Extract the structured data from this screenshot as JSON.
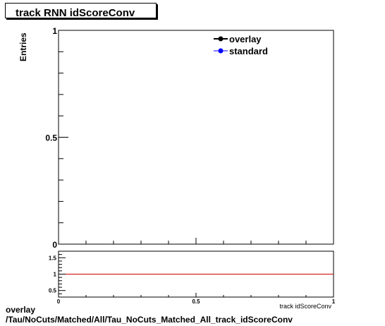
{
  "chart_data": [
    {
      "type": "line",
      "title": "track RNN idScoreConv",
      "ylabel": "Entries",
      "xlabel": "",
      "xlim": [
        0,
        1
      ],
      "ylim": [
        0,
        1
      ],
      "x_ticks": [
        0,
        0.5,
        1
      ],
      "y_ticks": [
        "0",
        "0.5",
        "1"
      ],
      "series": [
        {
          "name": "overlay",
          "color": "#000000",
          "x": [],
          "y": []
        },
        {
          "name": "standard",
          "color": "#0000ff",
          "x": [],
          "y": []
        }
      ],
      "legend": "top-right",
      "grid": false
    },
    {
      "type": "line",
      "title": "",
      "xlabel": "track idScoreConv",
      "xlim": [
        0,
        1
      ],
      "ylim": [
        0.3,
        1.7
      ],
      "x_ticks": [
        "0",
        "0.5",
        "1"
      ],
      "y_ticks": [
        "0.5",
        "1",
        "1.5"
      ],
      "reference_line": {
        "y": 1,
        "color": "#cc0000"
      },
      "grid": false
    }
  ],
  "footer": {
    "line1": "overlay",
    "line2": "/Tau/NoCuts/Matched/All/Tau_NoCuts_Matched_All_track_idScoreConv"
  }
}
